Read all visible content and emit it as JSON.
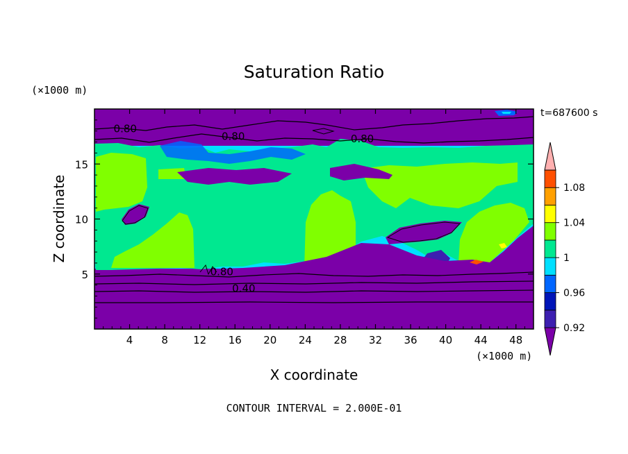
{
  "chart_data": {
    "type": "heatmap",
    "title": "Saturation Ratio",
    "xlabel": "X coordinate",
    "ylabel": "Z coordinate",
    "x_unit": "(×1000 m)",
    "y_unit": "(×1000 m)",
    "time_label": "t=687600 s",
    "footer": "CONTOUR INTERVAL = 2.000E-01",
    "xlim": [
      0,
      50
    ],
    "ylim": [
      0,
      20
    ],
    "x_ticks": [
      4,
      8,
      12,
      16,
      20,
      24,
      28,
      32,
      36,
      40,
      44,
      48
    ],
    "y_ticks": [
      5,
      10,
      15
    ],
    "contour_labels": [
      {
        "text": "0.80",
        "x": 3.5,
        "z": 18.2
      },
      {
        "text": "0.80",
        "x": 15.8,
        "z": 17.5
      },
      {
        "text": "0.80",
        "x": 30.5,
        "z": 17.3
      },
      {
        "text": "0.80",
        "x": 14.5,
        "z": 5.2
      },
      {
        "text": "0.40",
        "x": 17.0,
        "z": 3.7
      }
    ],
    "colorbar": {
      "levels": [
        0.92,
        0.94,
        0.96,
        0.98,
        1.0,
        1.02,
        1.04,
        1.06,
        1.08,
        1.1
      ],
      "tick_labels": [
        "0.92",
        "0.96",
        "1",
        "1.04",
        "1.08"
      ],
      "colors": [
        "#7b00a8",
        "#3d1fb0",
        "#0015b8",
        "#0066ff",
        "#00e0ff",
        "#00e890",
        "#80ff00",
        "#ffff00",
        "#ffa000",
        "#ff5000",
        "#ff1010",
        "#ffb0b0"
      ]
    }
  }
}
